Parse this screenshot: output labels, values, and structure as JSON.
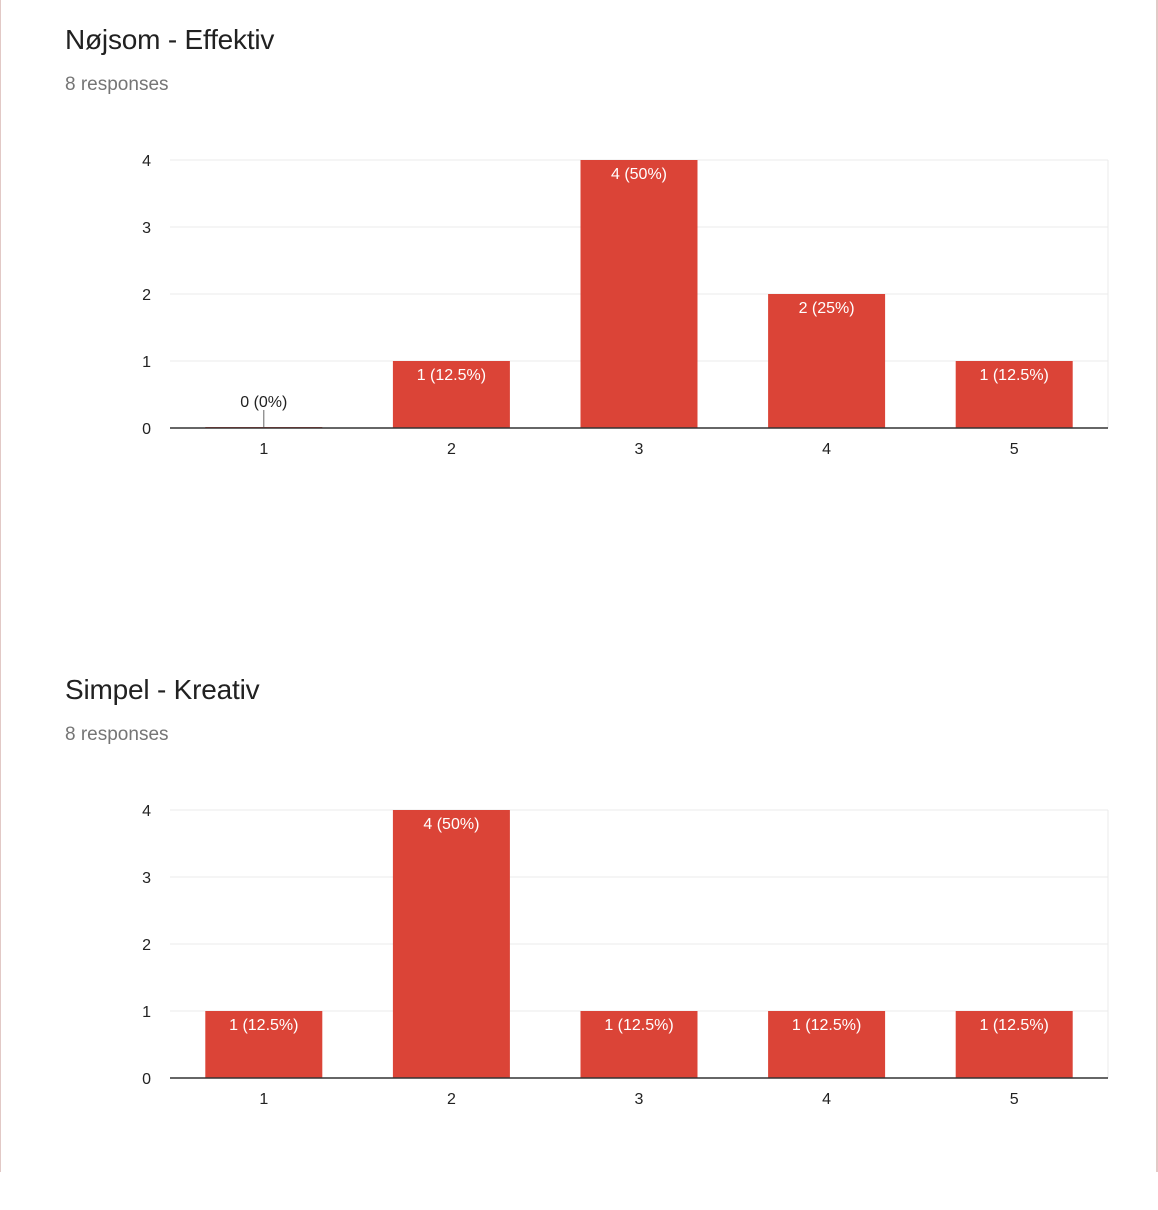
{
  "colors": {
    "bar": "#db4437",
    "grid": "#ebebeb",
    "axis": "#333333",
    "label_in": "#ffffff",
    "label_out": "#222222"
  },
  "chart_data": [
    {
      "type": "bar",
      "title": "Nøjsom - Effektiv",
      "subtitle": "8 responses",
      "categories": [
        "1",
        "2",
        "3",
        "4",
        "5"
      ],
      "values": [
        0,
        1,
        4,
        2,
        1
      ],
      "data_labels": [
        "0 (0%)",
        "1 (12.5%)",
        "4 (50%)",
        "2 (25%)",
        "1 (12.5%)"
      ],
      "yticks": [
        "0",
        "1",
        "2",
        "3",
        "4"
      ],
      "ylim": [
        0,
        4
      ],
      "grid": true,
      "legend": "none"
    },
    {
      "type": "bar",
      "title": "Simpel - Kreativ",
      "subtitle": "8 responses",
      "categories": [
        "1",
        "2",
        "3",
        "4",
        "5"
      ],
      "values": [
        1,
        4,
        1,
        1,
        1
      ],
      "data_labels": [
        "1 (12.5%)",
        "4 (50%)",
        "1 (12.5%)",
        "1 (12.5%)",
        "1 (12.5%)"
      ],
      "yticks": [
        "0",
        "1",
        "2",
        "3",
        "4"
      ],
      "ylim": [
        0,
        4
      ],
      "grid": true,
      "legend": "none"
    }
  ]
}
